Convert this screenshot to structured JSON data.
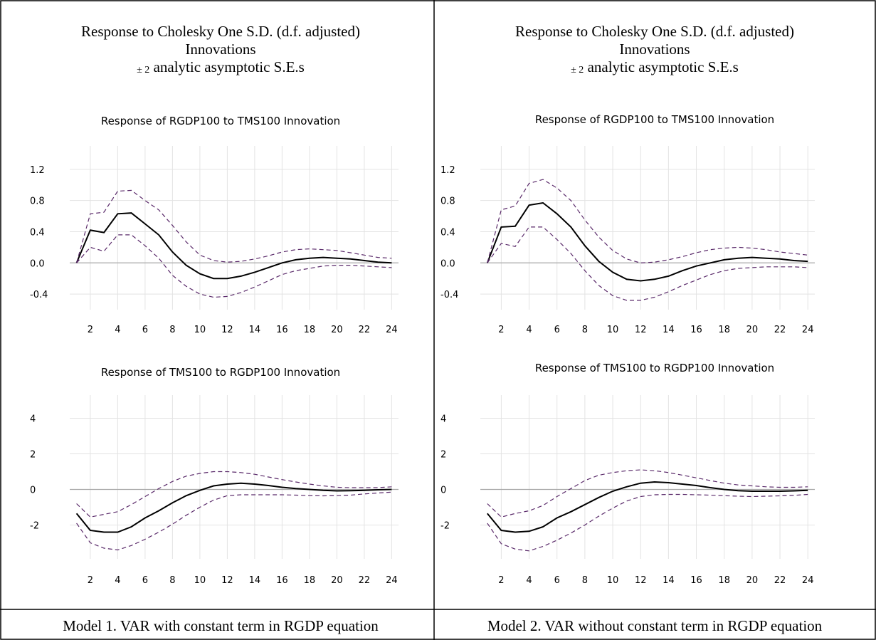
{
  "panels": [
    {
      "header_line1": "Response to Cholesky One S.D. (d.f. adjusted)",
      "header_line2": "Innovations",
      "header_pm": "± 2",
      "header_line3": "analytic asymptotic S.E.s",
      "caption": "Model 1. VAR with constant term in RGDP equation"
    },
    {
      "header_line1": "Response to Cholesky One S.D. (d.f. adjusted)",
      "header_line2": "Innovations",
      "header_pm": "± 2",
      "header_line3": "analytic asymptotic S.E.s",
      "caption": "Model 2. VAR without constant term in RGDP equation"
    }
  ],
  "chart_data": [
    {
      "type": "line",
      "title": "Response of RGDP100 to TMS100 Innovation",
      "x": [
        1,
        2,
        3,
        4,
        5,
        6,
        7,
        8,
        9,
        10,
        11,
        12,
        13,
        14,
        15,
        16,
        17,
        18,
        19,
        20,
        21,
        22,
        23,
        24
      ],
      "xticks": [
        "2",
        "4",
        "6",
        "8",
        "10",
        "12",
        "14",
        "16",
        "18",
        "20",
        "22",
        "24"
      ],
      "yticks": [
        "1.2",
        "0.8",
        "0.4",
        "0.0",
        "-0.4"
      ],
      "ylim": [
        -0.6,
        1.5
      ],
      "series": [
        {
          "role": "response",
          "values": [
            0.0,
            0.42,
            0.39,
            0.63,
            0.64,
            0.5,
            0.36,
            0.14,
            -0.03,
            -0.14,
            -0.2,
            -0.2,
            -0.17,
            -0.12,
            -0.06,
            0.0,
            0.04,
            0.06,
            0.07,
            0.06,
            0.05,
            0.03,
            0.01,
            0.0
          ]
        },
        {
          "role": "upper",
          "values": [
            0.0,
            0.63,
            0.65,
            0.92,
            0.93,
            0.8,
            0.68,
            0.48,
            0.27,
            0.1,
            0.03,
            0.01,
            0.02,
            0.05,
            0.09,
            0.14,
            0.17,
            0.18,
            0.17,
            0.16,
            0.13,
            0.1,
            0.07,
            0.06
          ]
        },
        {
          "role": "lower",
          "values": [
            0.0,
            0.2,
            0.15,
            0.36,
            0.36,
            0.22,
            0.06,
            -0.16,
            -0.3,
            -0.4,
            -0.44,
            -0.43,
            -0.38,
            -0.31,
            -0.23,
            -0.15,
            -0.1,
            -0.07,
            -0.04,
            -0.03,
            -0.03,
            -0.04,
            -0.05,
            -0.06
          ]
        }
      ]
    },
    {
      "type": "line",
      "title": "Response of TMS100 to RGDP100 Innovation",
      "x": [
        1,
        2,
        3,
        4,
        5,
        6,
        7,
        8,
        9,
        10,
        11,
        12,
        13,
        14,
        15,
        16,
        17,
        18,
        19,
        20,
        21,
        22,
        23,
        24
      ],
      "xticks": [
        "2",
        "4",
        "6",
        "8",
        "10",
        "12",
        "14",
        "16",
        "18",
        "20",
        "22",
        "24"
      ],
      "yticks": [
        "4",
        "2",
        "0",
        "-2"
      ],
      "ylim": [
        -3.9,
        5.3
      ],
      "series": [
        {
          "role": "response",
          "values": [
            -1.35,
            -2.3,
            -2.4,
            -2.4,
            -2.1,
            -1.6,
            -1.2,
            -0.75,
            -0.35,
            -0.05,
            0.2,
            0.3,
            0.35,
            0.3,
            0.22,
            0.12,
            0.05,
            0.0,
            -0.05,
            -0.08,
            -0.07,
            -0.05,
            -0.02,
            0.0
          ]
        },
        {
          "role": "upper",
          "values": [
            -0.8,
            -1.55,
            -1.4,
            -1.25,
            -0.85,
            -0.4,
            0.05,
            0.45,
            0.75,
            0.9,
            1.0,
            1.0,
            0.95,
            0.85,
            0.7,
            0.55,
            0.42,
            0.3,
            0.2,
            0.12,
            0.1,
            0.1,
            0.1,
            0.15
          ]
        },
        {
          "role": "lower",
          "values": [
            -1.9,
            -3.0,
            -3.3,
            -3.4,
            -3.15,
            -2.8,
            -2.4,
            -1.95,
            -1.45,
            -1.0,
            -0.6,
            -0.35,
            -0.3,
            -0.3,
            -0.3,
            -0.3,
            -0.32,
            -0.35,
            -0.36,
            -0.35,
            -0.32,
            -0.25,
            -0.2,
            -0.15
          ]
        }
      ]
    },
    {
      "type": "line",
      "title": "Response of RGDP100 to TMS100 Innovation",
      "x": [
        1,
        2,
        3,
        4,
        5,
        6,
        7,
        8,
        9,
        10,
        11,
        12,
        13,
        14,
        15,
        16,
        17,
        18,
        19,
        20,
        21,
        22,
        23,
        24
      ],
      "xticks": [
        "2",
        "4",
        "6",
        "8",
        "10",
        "12",
        "14",
        "16",
        "18",
        "20",
        "22",
        "24"
      ],
      "yticks": [
        "1.2",
        "0.8",
        "0.4",
        "0.0",
        "-0.4"
      ],
      "ylim": [
        -0.6,
        1.5
      ],
      "series": [
        {
          "role": "response",
          "values": [
            0.0,
            0.46,
            0.47,
            0.74,
            0.77,
            0.63,
            0.46,
            0.22,
            0.02,
            -0.12,
            -0.21,
            -0.23,
            -0.21,
            -0.17,
            -0.1,
            -0.04,
            0.0,
            0.04,
            0.06,
            0.07,
            0.06,
            0.05,
            0.03,
            0.02
          ]
        },
        {
          "role": "upper",
          "values": [
            0.0,
            0.68,
            0.73,
            1.02,
            1.07,
            0.96,
            0.8,
            0.55,
            0.33,
            0.16,
            0.05,
            0.0,
            0.01,
            0.04,
            0.08,
            0.13,
            0.17,
            0.19,
            0.2,
            0.19,
            0.17,
            0.14,
            0.12,
            0.1
          ]
        },
        {
          "role": "lower",
          "values": [
            0.0,
            0.25,
            0.21,
            0.46,
            0.46,
            0.3,
            0.12,
            -0.1,
            -0.29,
            -0.42,
            -0.48,
            -0.48,
            -0.44,
            -0.37,
            -0.29,
            -0.22,
            -0.15,
            -0.1,
            -0.07,
            -0.06,
            -0.05,
            -0.05,
            -0.05,
            -0.06
          ]
        }
      ]
    },
    {
      "type": "line",
      "title": "Response of TMS100 to RGDP100 Innovation",
      "x": [
        1,
        2,
        3,
        4,
        5,
        6,
        7,
        8,
        9,
        10,
        11,
        12,
        13,
        14,
        15,
        16,
        17,
        18,
        19,
        20,
        21,
        22,
        23,
        24
      ],
      "xticks": [
        "2",
        "4",
        "6",
        "8",
        "10",
        "12",
        "14",
        "16",
        "18",
        "20",
        "22",
        "24"
      ],
      "yticks": [
        "4",
        "2",
        "0",
        "-2"
      ],
      "ylim": [
        -3.9,
        5.3
      ],
      "series": [
        {
          "role": "response",
          "values": [
            -1.35,
            -2.3,
            -2.4,
            -2.35,
            -2.1,
            -1.6,
            -1.25,
            -0.85,
            -0.45,
            -0.1,
            0.15,
            0.35,
            0.42,
            0.38,
            0.3,
            0.22,
            0.1,
            0.0,
            -0.07,
            -0.1,
            -0.1,
            -0.1,
            -0.08,
            -0.05
          ]
        },
        {
          "role": "upper",
          "values": [
            -0.8,
            -1.55,
            -1.35,
            -1.2,
            -0.9,
            -0.4,
            0.05,
            0.5,
            0.8,
            0.95,
            1.05,
            1.1,
            1.05,
            0.95,
            0.8,
            0.65,
            0.5,
            0.35,
            0.25,
            0.2,
            0.15,
            0.12,
            0.12,
            0.15
          ]
        },
        {
          "role": "lower",
          "values": [
            -1.9,
            -3.05,
            -3.35,
            -3.45,
            -3.2,
            -2.85,
            -2.45,
            -2.0,
            -1.5,
            -1.05,
            -0.65,
            -0.4,
            -0.3,
            -0.28,
            -0.28,
            -0.3,
            -0.32,
            -0.35,
            -0.38,
            -0.4,
            -0.38,
            -0.36,
            -0.33,
            -0.28
          ]
        }
      ]
    }
  ]
}
